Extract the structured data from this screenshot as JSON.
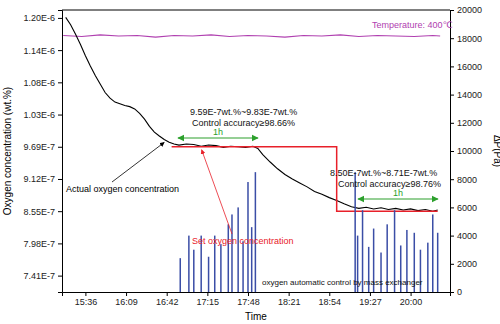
{
  "chart_data": {
    "type": "line",
    "x_label": "Time",
    "y_label": "Oxygen concentration (wt.%)",
    "y2_label": "ΔP(Pa)",
    "xlim": [
      917,
      1232
    ],
    "xticks": [
      {
        "value": 936,
        "label": "15:36"
      },
      {
        "value": 969,
        "label": "16:09"
      },
      {
        "value": 1002,
        "label": "16:42"
      },
      {
        "value": 1035,
        "label": "17:15"
      },
      {
        "value": 1068,
        "label": "17:48"
      },
      {
        "value": 1101,
        "label": "18:21"
      },
      {
        "value": 1134,
        "label": "18:54"
      },
      {
        "value": 1167,
        "label": "19:27"
      },
      {
        "value": 1200,
        "label": "20:00"
      }
    ],
    "ylim": [
      7.12e-07,
      1.211e-06
    ],
    "yticks": [
      {
        "value": 7.41e-07,
        "label": "7.41E-7"
      },
      {
        "value": 7.98e-07,
        "label": "7.98E-7"
      },
      {
        "value": 8.55e-07,
        "label": "8.55E-7"
      },
      {
        "value": 9.12e-07,
        "label": "9.12E-7"
      },
      {
        "value": 9.69e-07,
        "label": "9.69E-7"
      },
      {
        "value": 1.026e-06,
        "label": "1.03E-6"
      },
      {
        "value": 1.083e-06,
        "label": "1.08E-6"
      },
      {
        "value": 1.14e-06,
        "label": "1.14E-6"
      },
      {
        "value": 1.197e-06,
        "label": "1.20E-6"
      }
    ],
    "y2lim": [
      0,
      20000
    ],
    "y2ticks": [
      0,
      2000,
      4000,
      6000,
      8000,
      10000,
      12000,
      14000,
      16000,
      18000,
      20000
    ],
    "series": [
      {
        "name": "Temperature: 400℃",
        "type": "line",
        "color": "#b040b0",
        "x": [
          918,
          933,
          948,
          963,
          978,
          993,
          1008,
          1023,
          1038,
          1053,
          1068,
          1083,
          1098,
          1113,
          1128,
          1143,
          1158,
          1173,
          1188,
          1203,
          1218,
          1224
        ],
        "values": [
          1.166e-06,
          1.164e-06,
          1.167e-06,
          1.165e-06,
          1.166e-06,
          1.163e-06,
          1.166e-06,
          1.165e-06,
          1.167e-06,
          1.164e-06,
          1.166e-06,
          1.165e-06,
          1.163e-06,
          1.166e-06,
          1.165e-06,
          1.167e-06,
          1.164e-06,
          1.166e-06,
          1.165e-06,
          1.164e-06,
          1.166e-06,
          1.165e-06
        ]
      },
      {
        "name": "Actual oxygen concentration",
        "type": "line",
        "color": "#000000",
        "x": [
          920,
          924,
          928,
          932,
          936,
          940,
          944,
          948,
          952,
          956,
          960,
          964,
          968,
          972,
          976,
          980,
          984,
          988,
          992,
          996,
          1000,
          1004,
          1008,
          1012,
          1018,
          1024,
          1030,
          1036,
          1042,
          1048,
          1054,
          1060,
          1066,
          1072,
          1076,
          1080,
          1086,
          1092,
          1098,
          1104,
          1110,
          1116,
          1122,
          1128,
          1134,
          1140,
          1146,
          1152,
          1158,
          1164,
          1170,
          1176,
          1182,
          1188,
          1194,
          1200,
          1206,
          1212,
          1218,
          1222
        ],
        "values": [
          1.198e-06,
          1.185e-06,
          1.168e-06,
          1.15e-06,
          1.13e-06,
          1.112e-06,
          1.095e-06,
          1.08e-06,
          1.065e-06,
          1.055e-06,
          1.048e-06,
          1.045e-06,
          1.042e-06,
          1.04e-06,
          1.036e-06,
          1.028e-06,
          1.018e-06,
          1.005e-06,
          9.95e-07,
          9.88e-07,
          9.82e-07,
          9.77e-07,
          9.74e-07,
          9.72e-07,
          9.74e-07,
          9.73e-07,
          9.7e-07,
          9.72e-07,
          9.71e-07,
          9.68e-07,
          9.7e-07,
          9.69e-07,
          9.68e-07,
          9.7e-07,
          9.66e-07,
          9.55e-07,
          9.42e-07,
          9.3e-07,
          9.2e-07,
          9.12e-07,
          9.05e-07,
          8.98e-07,
          8.9e-07,
          8.85e-07,
          8.79e-07,
          8.74e-07,
          8.68e-07,
          8.63e-07,
          8.6e-07,
          8.62e-07,
          8.59e-07,
          8.61e-07,
          8.58e-07,
          8.6e-07,
          8.57e-07,
          8.59e-07,
          8.56e-07,
          8.58e-07,
          8.55e-07,
          8.57e-07
        ]
      },
      {
        "name": "Set oxygen concentration",
        "type": "line",
        "color": "#e8202a",
        "x": [
          1006,
          1140,
          1140,
          1222
        ],
        "values": [
          9.69e-07,
          9.69e-07,
          8.55e-07,
          8.55e-07
        ]
      },
      {
        "name": "oxygen automatic control by mass exchanger",
        "type": "bar",
        "axis": "y2",
        "color": "#3b4ea6",
        "x": [
          1013,
          1020,
          1024,
          1030,
          1036,
          1041,
          1046,
          1052,
          1055,
          1060,
          1064,
          1068,
          1071,
          1074,
          1155,
          1157,
          1161,
          1166,
          1170,
          1176,
          1181,
          1187,
          1192,
          1197,
          1203,
          1208,
          1214,
          1218,
          1222
        ],
        "values": [
          2400,
          4000,
          3000,
          4000,
          2500,
          4000,
          3400,
          4800,
          5500,
          6000,
          3600,
          7800,
          4600,
          8500,
          8500,
          4000,
          5800,
          3200,
          4500,
          2800,
          4800,
          5800,
          3300,
          4400,
          4200,
          3000,
          3500,
          5500,
          4200
        ]
      }
    ],
    "annotations": [
      {
        "text": "9.59E-7wt.%~9.83E-7wt.%"
      },
      {
        "text": "Control accuracy≥98.66%"
      },
      {
        "text": "1h"
      },
      {
        "text": "8.50E-7wt.%~8.71E-7wt.%"
      },
      {
        "text": "Control accuracy≥98.76%"
      },
      {
        "text": "1h"
      }
    ]
  }
}
